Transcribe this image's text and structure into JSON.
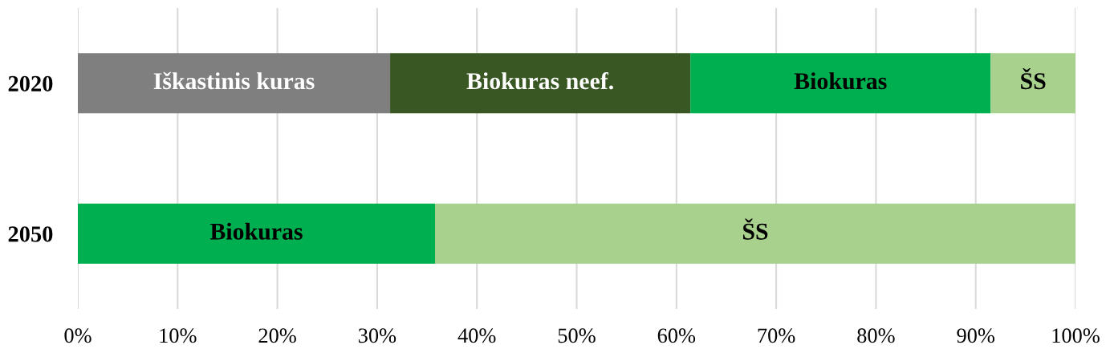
{
  "chart_data": {
    "type": "bar",
    "orientation": "horizontal",
    "stacked": true,
    "categories": [
      "2020",
      "2050"
    ],
    "series": [
      {
        "name": "Iškastinis kuras",
        "color": "#7f7f7f",
        "values": [
          31.3,
          null
        ]
      },
      {
        "name": "Biokuras neef.",
        "color": "#385723",
        "values": [
          30.1,
          null
        ]
      },
      {
        "name": "Biokuras",
        "color": "#00b050",
        "values": [
          30.1,
          35.8
        ]
      },
      {
        "name": "ŠS",
        "color": "#a9d18e",
        "values": [
          8.5,
          64.2
        ]
      }
    ],
    "xlim": [
      0,
      100
    ],
    "xticks": [
      {
        "value": 0,
        "label": "0%"
      },
      {
        "value": 10,
        "label": "10%"
      },
      {
        "value": 20,
        "label": "20%"
      },
      {
        "value": 30,
        "label": "30%"
      },
      {
        "value": 40,
        "label": "40%"
      },
      {
        "value": 50,
        "label": "50%"
      },
      {
        "value": 60,
        "label": "60%"
      },
      {
        "value": 70,
        "label": "70%"
      },
      {
        "value": 80,
        "label": "80%"
      },
      {
        "value": 90,
        "label": "90%"
      },
      {
        "value": 100,
        "label": "100%"
      }
    ],
    "grid": "x",
    "legend": false
  }
}
